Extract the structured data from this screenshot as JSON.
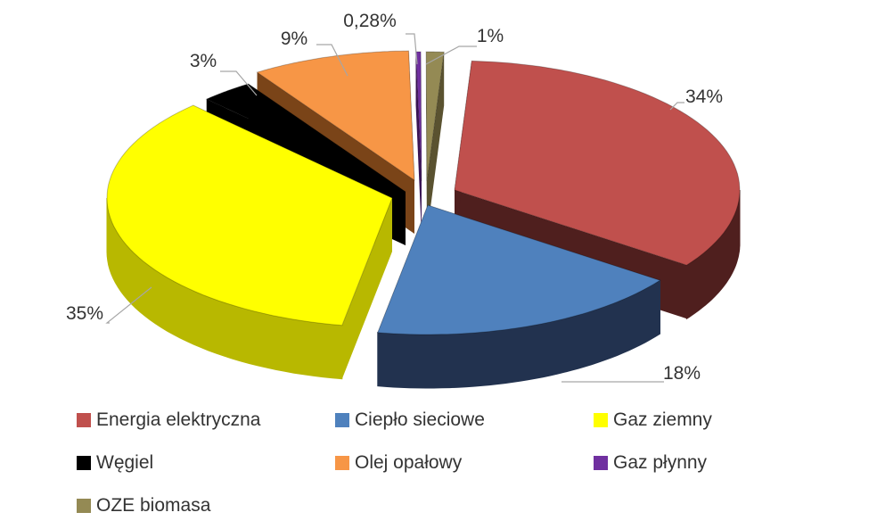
{
  "chart_data": {
    "type": "pie",
    "style": "3d-exploded",
    "slices": [
      {
        "name": "Energia elektryczna",
        "value": 34,
        "label": "34%",
        "color": "#C0504D",
        "side_color": "#4F1F1E"
      },
      {
        "name": "Ciepło sieciowe",
        "value": 18,
        "label": "18%",
        "color": "#4F81BD",
        "side_color": "#22324F"
      },
      {
        "name": "Gaz ziemny",
        "value": 35,
        "label": "35%",
        "color": "#FFFF00",
        "side_color": "#B8B800"
      },
      {
        "name": "Węgiel",
        "value": 3,
        "label": "3%",
        "color": "#000000",
        "side_color": "#000000"
      },
      {
        "name": "Olej opałowy",
        "value": 9,
        "label": "9%",
        "color": "#F79646",
        "side_color": "#7A4418"
      },
      {
        "name": "Gaz płynny",
        "value": 0.28,
        "label": "0,28%",
        "color": "#7030A0",
        "side_color": "#3A1455"
      },
      {
        "name": "OZE biomasa",
        "value": 1,
        "label": "1%",
        "color": "#948A54",
        "side_color": "#5A5230"
      }
    ],
    "legend_position": "bottom"
  }
}
